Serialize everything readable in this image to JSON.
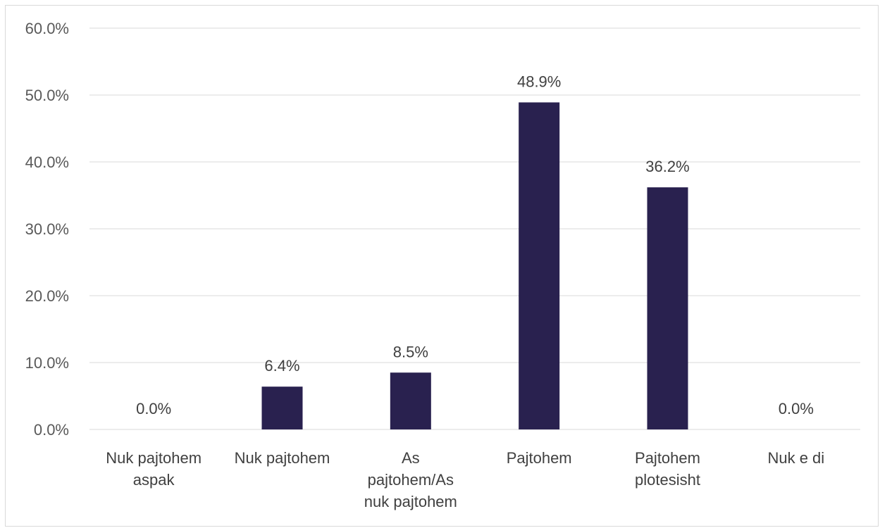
{
  "chart_data": {
    "type": "bar",
    "title": "",
    "xlabel": "",
    "ylabel": "",
    "categories": [
      [
        "Nuk pajtohem",
        "aspak"
      ],
      [
        "Nuk pajtohem"
      ],
      [
        "As",
        "pajtohem/As",
        "nuk pajtohem"
      ],
      [
        "Pajtohem"
      ],
      [
        "Pajtohem",
        "plotesisht"
      ],
      [
        "Nuk e di"
      ]
    ],
    "values": [
      0.0,
      6.4,
      8.5,
      48.9,
      36.2,
      0.0
    ],
    "data_labels": [
      "0.0%",
      "6.4%",
      "8.5%",
      "48.9%",
      "36.2%",
      "0.0%"
    ],
    "ylim": [
      0,
      60
    ],
    "yticks": [
      0,
      10,
      20,
      30,
      40,
      50,
      60
    ],
    "ytick_labels": [
      "0.0%",
      "10.0%",
      "20.0%",
      "30.0%",
      "40.0%",
      "50.0%",
      "60.0%"
    ],
    "grid": true,
    "legend": "none",
    "bar_color": "#29214f"
  }
}
